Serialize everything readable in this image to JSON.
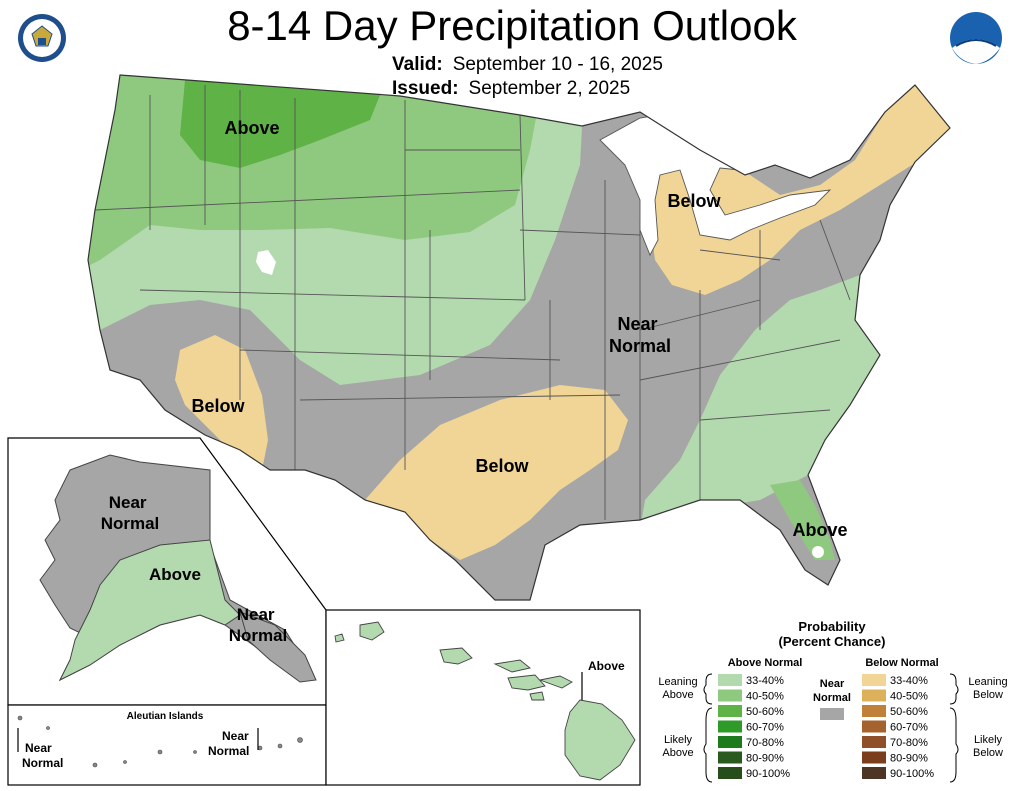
{
  "header": {
    "title": "8-14 Day Precipitation Outlook",
    "valid_label": "Valid:",
    "valid_value": "September 10 - 16, 2025",
    "issued_label": "Issued:",
    "issued_value": "September 2, 2025"
  },
  "logos": {
    "left": "us-department-of-commerce-seal",
    "right": "noaa-logo"
  },
  "regions": {
    "northwest": "Above",
    "great_lakes": "Below",
    "central": "Near Normal",
    "southwest": "Below",
    "southern_plains": "Below",
    "florida": "Above",
    "alaska_north": "Near Normal",
    "alaska_south": "Above",
    "alaska_southeast": "Near Normal",
    "hawaii": "Above",
    "aleutian_title": "Aleutian Islands",
    "aleutian_west": "Near Normal",
    "aleutian_east": "Near Normal"
  },
  "legend": {
    "title_line1": "Probability",
    "title_line2": "(Percent Chance)",
    "above_header": "Above Normal",
    "below_header": "Below Normal",
    "near_label_line1": "Near",
    "near_label_line2": "Normal",
    "leaning_above": [
      "Leaning",
      "Above"
    ],
    "likely_above": [
      "Likely",
      "Above"
    ],
    "leaning_below": [
      "Leaning",
      "Below"
    ],
    "likely_below": [
      "Likely",
      "Below"
    ],
    "bins": [
      "33-40%",
      "40-50%",
      "50-60%",
      "60-70%",
      "70-80%",
      "80-90%",
      "90-100%"
    ],
    "above_colors": [
      "#b3d9ae",
      "#8fc97f",
      "#5fb246",
      "#2e9a27",
      "#1d7a1d",
      "#2b5a1e",
      "#264d1a"
    ],
    "below_colors": [
      "#f0d596",
      "#ddb15c",
      "#c0803a",
      "#a5612e",
      "#8e4f29",
      "#7a3e1d",
      "#4e3424"
    ],
    "near_color": "#a6a6a6"
  },
  "colors": {
    "near": "#a6a6a6",
    "above_33": "#b3d9ae",
    "above_40": "#8fc97f",
    "above_50": "#5fb246",
    "below_33": "#f0d596",
    "water": "#ffffff"
  }
}
